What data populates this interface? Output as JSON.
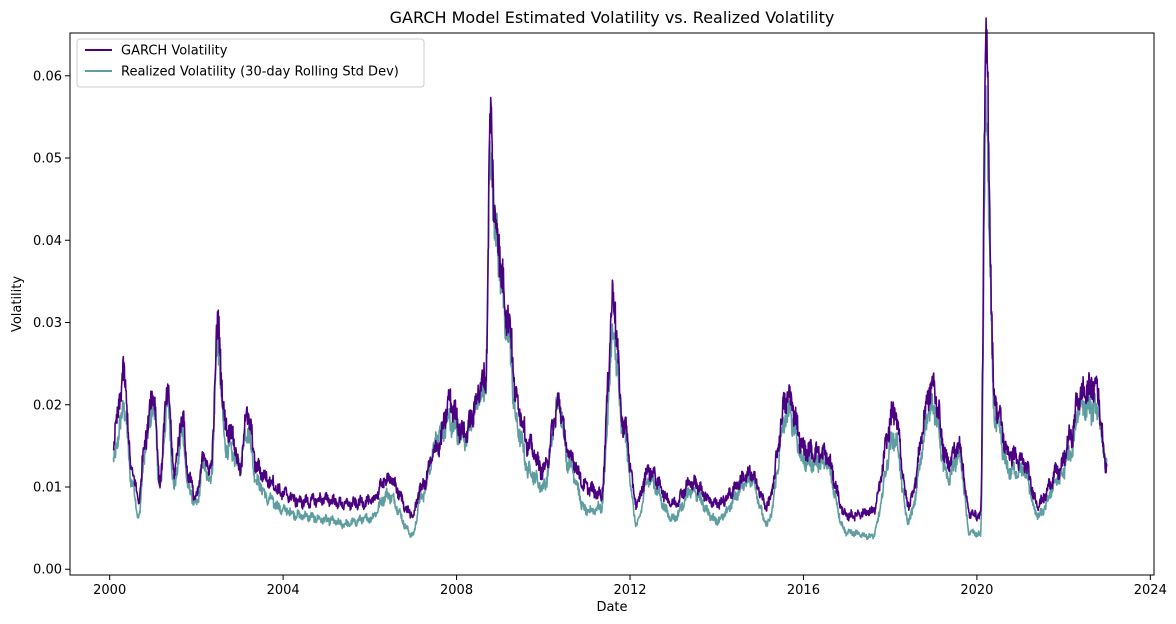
{
  "chart_data": {
    "type": "line",
    "title": "GARCH Model Estimated Volatility vs. Realized Volatility",
    "xlabel": "Date",
    "ylabel": "Volatility",
    "x_ticks": [
      "2000",
      "2004",
      "2008",
      "2012",
      "2016",
      "2020",
      "2024"
    ],
    "y_ticks": [
      "0.00",
      "0.01",
      "0.02",
      "0.03",
      "0.04",
      "0.05",
      "0.06"
    ],
    "xlim": [
      "1999-02-01",
      "2024-02-01"
    ],
    "ylim": [
      -0.0007,
      0.0652
    ],
    "grid": false,
    "legend_position": "top-left",
    "series": [
      {
        "name": "GARCH Volatility",
        "color": "#4b0082",
        "points": [
          [
            "2000-02-01",
            0.0152
          ],
          [
            "2000-04-01",
            0.021
          ],
          [
            "2000-05-01",
            0.0239
          ],
          [
            "2000-07-01",
            0.0123
          ],
          [
            "2000-09-01",
            0.0086
          ],
          [
            "2000-11-01",
            0.0164
          ],
          [
            "2001-01-01",
            0.0218
          ],
          [
            "2001-03-01",
            0.011
          ],
          [
            "2001-05-01",
            0.0217
          ],
          [
            "2001-07-01",
            0.012
          ],
          [
            "2001-09-01",
            0.0185
          ],
          [
            "2001-11-01",
            0.011
          ],
          [
            "2002-01-01",
            0.0086
          ],
          [
            "2002-03-01",
            0.0138
          ],
          [
            "2002-05-01",
            0.012
          ],
          [
            "2002-07-01",
            0.0292
          ],
          [
            "2002-09-01",
            0.0176
          ],
          [
            "2002-11-01",
            0.0162
          ],
          [
            "2003-01-01",
            0.012
          ],
          [
            "2003-03-01",
            0.019
          ],
          [
            "2003-06-01",
            0.0122
          ],
          [
            "2003-09-01",
            0.0108
          ],
          [
            "2004-01-01",
            0.0092
          ],
          [
            "2004-06-01",
            0.0082
          ],
          [
            "2005-01-01",
            0.0085
          ],
          [
            "2005-06-01",
            0.0079
          ],
          [
            "2006-01-01",
            0.0082
          ],
          [
            "2006-06-01",
            0.011
          ],
          [
            "2007-01-01",
            0.0066
          ],
          [
            "2007-03-01",
            0.0098
          ],
          [
            "2007-08-01",
            0.015
          ],
          [
            "2007-11-01",
            0.0203
          ],
          [
            "2008-03-01",
            0.0165
          ],
          [
            "2008-09-01",
            0.023
          ],
          [
            "2008-10-15",
            0.0537
          ],
          [
            "2008-12-01",
            0.041
          ],
          [
            "2009-03-01",
            0.0315
          ],
          [
            "2009-06-01",
            0.02
          ],
          [
            "2009-09-01",
            0.015
          ],
          [
            "2010-01-01",
            0.012
          ],
          [
            "2010-05-15",
            0.02
          ],
          [
            "2010-08-01",
            0.014
          ],
          [
            "2011-01-01",
            0.01
          ],
          [
            "2011-05-01",
            0.009
          ],
          [
            "2011-08-15",
            0.0327
          ],
          [
            "2011-11-01",
            0.018
          ],
          [
            "2012-03-01",
            0.008
          ],
          [
            "2012-06-01",
            0.012
          ],
          [
            "2013-01-01",
            0.008
          ],
          [
            "2013-06-01",
            0.0105
          ],
          [
            "2014-01-01",
            0.008
          ],
          [
            "2014-10-15",
            0.0115
          ],
          [
            "2015-03-01",
            0.0078
          ],
          [
            "2015-08-24",
            0.021
          ],
          [
            "2016-01-15",
            0.0145
          ],
          [
            "2016-06-24",
            0.014
          ],
          [
            "2017-01-01",
            0.0065
          ],
          [
            "2017-08-01",
            0.007
          ],
          [
            "2018-02-08",
            0.019
          ],
          [
            "2018-06-01",
            0.008
          ],
          [
            "2018-12-24",
            0.0222
          ],
          [
            "2019-05-01",
            0.013
          ],
          [
            "2019-08-05",
            0.015
          ],
          [
            "2019-11-01",
            0.0068
          ],
          [
            "2020-02-01",
            0.0065
          ],
          [
            "2020-03-16",
            0.062
          ],
          [
            "2020-06-01",
            0.02
          ],
          [
            "2020-10-01",
            0.014
          ],
          [
            "2021-01-27",
            0.013
          ],
          [
            "2021-06-01",
            0.008
          ],
          [
            "2021-11-26",
            0.012
          ],
          [
            "2022-03-01",
            0.016
          ],
          [
            "2022-05-15",
            0.0212
          ],
          [
            "2022-10-01",
            0.0223
          ],
          [
            "2022-12-31",
            0.0125
          ]
        ]
      },
      {
        "name": "Realized Volatility (30-day Rolling Std Dev)",
        "color": "#5f9ea0",
        "points": [
          [
            "2000-02-01",
            0.013
          ],
          [
            "2000-04-01",
            0.0175
          ],
          [
            "2000-05-01",
            0.02
          ],
          [
            "2000-07-01",
            0.011
          ],
          [
            "2000-09-01",
            0.0065
          ],
          [
            "2000-11-01",
            0.015
          ],
          [
            "2001-01-01",
            0.02
          ],
          [
            "2001-03-01",
            0.01
          ],
          [
            "2001-05-01",
            0.02
          ],
          [
            "2001-07-01",
            0.01
          ],
          [
            "2001-09-01",
            0.0165
          ],
          [
            "2001-11-01",
            0.0095
          ],
          [
            "2002-01-01",
            0.0078
          ],
          [
            "2002-03-01",
            0.0125
          ],
          [
            "2002-05-01",
            0.0108
          ],
          [
            "2002-07-01",
            0.0272
          ],
          [
            "2002-09-01",
            0.015
          ],
          [
            "2002-11-01",
            0.014
          ],
          [
            "2003-01-01",
            0.0125
          ],
          [
            "2003-03-01",
            0.017
          ],
          [
            "2003-06-01",
            0.0105
          ],
          [
            "2003-09-01",
            0.0085
          ],
          [
            "2004-01-01",
            0.0072
          ],
          [
            "2004-06-01",
            0.0065
          ],
          [
            "2005-01-01",
            0.006
          ],
          [
            "2005-06-01",
            0.0055
          ],
          [
            "2006-01-01",
            0.0062
          ],
          [
            "2006-06-01",
            0.009
          ],
          [
            "2007-01-01",
            0.0042
          ],
          [
            "2007-03-01",
            0.0085
          ],
          [
            "2007-08-01",
            0.016
          ],
          [
            "2007-11-01",
            0.018
          ],
          [
            "2008-03-01",
            0.016
          ],
          [
            "2008-09-01",
            0.022
          ],
          [
            "2008-10-15",
            0.051
          ],
          [
            "2008-12-01",
            0.04
          ],
          [
            "2009-03-01",
            0.029
          ],
          [
            "2009-06-01",
            0.017
          ],
          [
            "2009-09-01",
            0.012
          ],
          [
            "2010-01-01",
            0.01
          ],
          [
            "2010-05-15",
            0.02
          ],
          [
            "2010-08-01",
            0.013
          ],
          [
            "2011-01-01",
            0.007
          ],
          [
            "2011-05-01",
            0.0075
          ],
          [
            "2011-08-15",
            0.028
          ],
          [
            "2011-11-01",
            0.017
          ],
          [
            "2012-03-01",
            0.0055
          ],
          [
            "2012-06-01",
            0.011
          ],
          [
            "2013-01-01",
            0.0062
          ],
          [
            "2013-06-01",
            0.0095
          ],
          [
            "2014-01-01",
            0.006
          ],
          [
            "2014-10-15",
            0.011
          ],
          [
            "2015-03-01",
            0.0055
          ],
          [
            "2015-08-24",
            0.019
          ],
          [
            "2016-01-15",
            0.013
          ],
          [
            "2016-06-24",
            0.013
          ],
          [
            "2017-01-01",
            0.0045
          ],
          [
            "2017-08-01",
            0.004
          ],
          [
            "2018-02-08",
            0.016
          ],
          [
            "2018-06-01",
            0.006
          ],
          [
            "2018-12-24",
            0.02
          ],
          [
            "2019-05-01",
            0.011
          ],
          [
            "2019-08-05",
            0.014
          ],
          [
            "2019-11-01",
            0.0045
          ],
          [
            "2020-02-01",
            0.0042
          ],
          [
            "2020-03-16",
            0.0537
          ],
          [
            "2020-06-01",
            0.018
          ],
          [
            "2020-10-01",
            0.012
          ],
          [
            "2021-01-27",
            0.012
          ],
          [
            "2021-06-01",
            0.0065
          ],
          [
            "2021-11-26",
            0.011
          ],
          [
            "2022-03-01",
            0.014
          ],
          [
            "2022-05-15",
            0.02
          ],
          [
            "2022-10-01",
            0.0195
          ],
          [
            "2022-12-31",
            0.013
          ]
        ]
      }
    ]
  }
}
